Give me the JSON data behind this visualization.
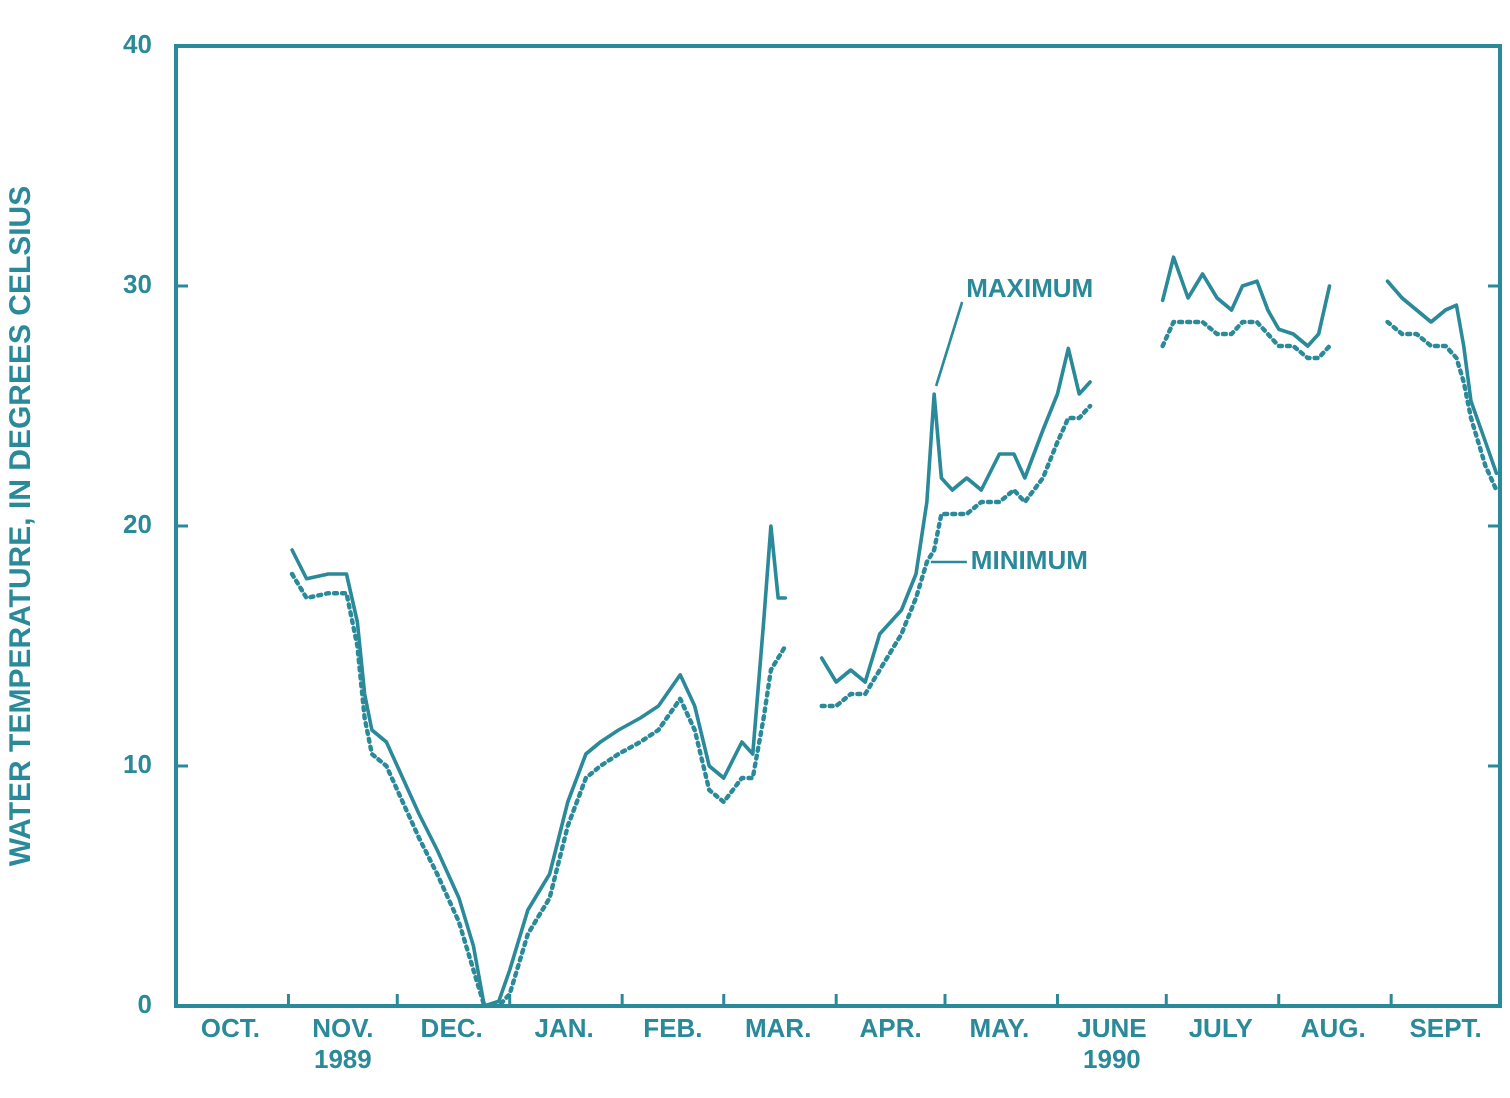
{
  "chart_data": {
    "type": "line",
    "ylabel": "WATER TEMPERATURE, IN DEGREES CELSIUS",
    "x": [
      "1989-11-02",
      "1989-11-06",
      "1989-11-12",
      "1989-11-17",
      "1989-11-20",
      "1989-11-22",
      "1989-11-24",
      "1989-11-28",
      "1989-12-01",
      "1989-12-07",
      "1989-12-12",
      "1989-12-18",
      "1989-12-22",
      "1989-12-25",
      "1989-12-29",
      "1990-01-01",
      "1990-01-06",
      "1990-01-12",
      "1990-01-17",
      "1990-01-22",
      "1990-01-26",
      "1990-01-31",
      "1990-02-06",
      "1990-02-11",
      "1990-02-17",
      "1990-02-21",
      "1990-02-25",
      "1990-03-01",
      "1990-03-06",
      "1990-03-09",
      "1990-03-12",
      "1990-03-14",
      "1990-03-16",
      "1990-03-18",
      "1990-03-24",
      "1990-03-28",
      "1990-04-01",
      "1990-04-05",
      "1990-04-09",
      "1990-04-13",
      "1990-04-19",
      "1990-04-23",
      "1990-04-26",
      "1990-04-28",
      "1990-04-30",
      "1990-05-03",
      "1990-05-07",
      "1990-05-11",
      "1990-05-16",
      "1990-05-20",
      "1990-05-23",
      "1990-05-28",
      "1990-06-01",
      "1990-06-04",
      "1990-06-07",
      "1990-06-10",
      "1990-06-20",
      "1990-06-30",
      "1990-07-03",
      "1990-07-07",
      "1990-07-11",
      "1990-07-15",
      "1990-07-19",
      "1990-07-22",
      "1990-07-26",
      "1990-07-29",
      "1990-08-01",
      "1990-08-05",
      "1990-08-09",
      "1990-08-12",
      "1990-08-15",
      "1990-08-23",
      "1990-08-31",
      "1990-09-04",
      "1990-09-08",
      "1990-09-12",
      "1990-09-16",
      "1990-09-19",
      "1990-09-21",
      "1990-09-23",
      "1990-09-27",
      "1990-09-30"
    ],
    "series": [
      {
        "color": "#2b8a99",
        "values": [
          19,
          17.8,
          18,
          18,
          16,
          13,
          11.5,
          11,
          10,
          8,
          6.5,
          4.5,
          2.5,
          0,
          0.2,
          1.5,
          4,
          5.5,
          8.5,
          10.5,
          11,
          11.5,
          12,
          12.5,
          13.8,
          12.5,
          10,
          9.5,
          11,
          10.5,
          16,
          20,
          17,
          17,
          null,
          14.5,
          13.5,
          14,
          13.5,
          15.5,
          16.5,
          18,
          21,
          25.5,
          22,
          21.5,
          22,
          21.5,
          23,
          23,
          22,
          24,
          25.5,
          27.4,
          25.5,
          26,
          null,
          29.4,
          31.2,
          29.5,
          30.5,
          29.5,
          29,
          30,
          30.2,
          29,
          28.2,
          28,
          27.5,
          28,
          30,
          null,
          30.2,
          29.5,
          29,
          28.5,
          29,
          29.2,
          27.5,
          25.2,
          23.5,
          22.2
        ]
      },
      {
        "color": "#2b8a99",
        "line_style": "dotted",
        "values": [
          18,
          17,
          17.2,
          17.2,
          15,
          12,
          10.5,
          10,
          9,
          7,
          5.5,
          3.5,
          1.5,
          0,
          0,
          0.5,
          3,
          4.5,
          7.5,
          9.5,
          10,
          10.5,
          11,
          11.5,
          12.8,
          11.5,
          9,
          8.5,
          9.5,
          9.5,
          12,
          14,
          14.5,
          15,
          null,
          12.5,
          12.5,
          13,
          13,
          14,
          15.5,
          17,
          18.5,
          19,
          20.5,
          20.5,
          20.5,
          21,
          21,
          21.5,
          21,
          22,
          23.5,
          24.5,
          24.5,
          25,
          null,
          27.5,
          28.5,
          28.5,
          28.5,
          28,
          28,
          28.5,
          28.5,
          28,
          27.5,
          27.5,
          27,
          27,
          27.5,
          null,
          28.5,
          28,
          28,
          27.5,
          27.5,
          27,
          26,
          24.5,
          22.5,
          21.5
        ]
      }
    ],
    "annotations": [
      {
        "text": "MAXIMUM",
        "x": "1990-04-28",
        "y": 25.5
      },
      {
        "text": "MINIMUM",
        "x": "1990-04-26",
        "y": 18.5
      }
    ],
    "xlim": [
      "1989-10-01",
      "1990-10-01"
    ],
    "xticks": [
      {
        "value": "1989-10-01",
        "label": null
      },
      {
        "value": "1989-10-16",
        "label": "OCT."
      },
      {
        "value": "1989-11-01",
        "label": null
      },
      {
        "value": "1989-11-16",
        "label": "NOV.\n1989"
      },
      {
        "value": "1989-12-01",
        "label": null
      },
      {
        "value": "1989-12-16",
        "label": "DEC."
      },
      {
        "value": "1990-01-01",
        "label": null
      },
      {
        "value": "1990-01-16",
        "label": "JAN."
      },
      {
        "value": "1990-02-01",
        "label": null
      },
      {
        "value": "1990-02-15",
        "label": "FEB."
      },
      {
        "value": "1990-03-01",
        "label": null
      },
      {
        "value": "1990-03-16",
        "label": "MAR."
      },
      {
        "value": "1990-04-01",
        "label": null
      },
      {
        "value": "1990-04-16",
        "label": "APR."
      },
      {
        "value": "1990-05-01",
        "label": null
      },
      {
        "value": "1990-05-16",
        "label": "MAY."
      },
      {
        "value": "1990-06-01",
        "label": null
      },
      {
        "value": "1990-06-16",
        "label": "JUNE\n1990"
      },
      {
        "value": "1990-07-01",
        "label": null
      },
      {
        "value": "1990-07-16",
        "label": "JULY"
      },
      {
        "value": "1990-08-01",
        "label": null
      },
      {
        "value": "1990-08-16",
        "label": "AUG."
      },
      {
        "value": "1990-09-01",
        "label": null
      },
      {
        "value": "1990-09-16",
        "label": "SEPT."
      },
      {
        "value": "1990-10-01",
        "label": null
      }
    ],
    "ylim": [
      0,
      40
    ],
    "yticks": [
      0,
      10,
      20,
      30,
      40
    ],
    "grid": false,
    "legend": false,
    "marker": "none"
  }
}
